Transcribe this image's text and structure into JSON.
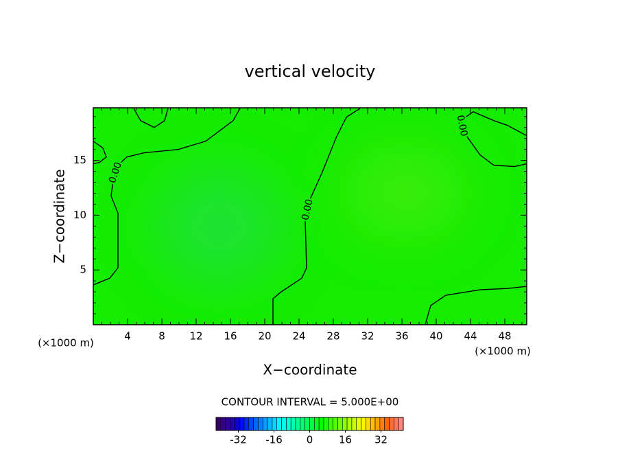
{
  "chart_data": {
    "type": "contour",
    "title": "vertical velocity",
    "x_label": "X−coordinate",
    "y_label": "Z−coordinate",
    "x_unit": "(×1000 m)",
    "y_unit": "(×1000 m)",
    "xlim": [
      0,
      50.56
    ],
    "ylim": [
      0,
      19.8
    ],
    "xticks": [
      4,
      8,
      12,
      16,
      20,
      24,
      28,
      32,
      36,
      40,
      44,
      48
    ],
    "yticks": [
      5,
      10,
      15
    ],
    "contours": [
      {
        "level": 0,
        "label": "0.00",
        "x": [
          17.12,
          16.32,
          13.12,
          9.92,
          5.92,
          3.92,
          2.88,
          2.32,
          2.08,
          2.88,
          2.88,
          1.92,
          0
        ],
        "y": [
          19.75,
          18.63,
          16.75,
          16.0,
          15.69,
          15.31,
          14.56,
          13.19,
          11.75,
          10.19,
          5.19,
          4.25,
          3.63
        ]
      },
      {
        "level": 0,
        "x": [
          0,
          1.12,
          1.52,
          0.72,
          0
        ],
        "y": [
          16.75,
          16.13,
          15.31,
          14.81,
          14.69
        ]
      },
      {
        "level": 0,
        "x": [
          4.72,
          5.52,
          7.12,
          8.32,
          8.72
        ],
        "y": [
          19.75,
          18.63,
          18.0,
          18.63,
          19.75
        ]
      },
      {
        "level": 0,
        "label": "0.00",
        "x": [
          20.96,
          20.96,
          21.92,
          24.32,
          24.88,
          24.72,
          25.28,
          26.72,
          28.32,
          29.52,
          31.12
        ],
        "y": [
          0,
          2.38,
          3.0,
          4.25,
          5.19,
          9.56,
          11.44,
          13.94,
          17.06,
          18.94,
          19.75
        ]
      },
      {
        "level": 0,
        "label": "0.00",
        "x": [
          50.56,
          48.3,
          46.72,
          44.32,
          42.88,
          43.12,
          45.12,
          46.72,
          49.12,
          50.56
        ],
        "y": [
          17.25,
          18.2,
          18.63,
          19.44,
          18.63,
          17.69,
          15.5,
          14.56,
          14.44,
          14.69
        ]
      },
      {
        "level": 0,
        "x": [
          38.72,
          39.36,
          41.12,
          45.12,
          48.32,
          50.56
        ],
        "y": [
          0,
          1.75,
          2.69,
          3.19,
          3.31,
          3.5
        ]
      }
    ],
    "contour_interval_label": "CONTOUR INTERVAL = 5.000E+00",
    "clim": [
      -42,
      42
    ],
    "cticks": [
      -32,
      -16,
      0,
      16,
      32
    ]
  }
}
